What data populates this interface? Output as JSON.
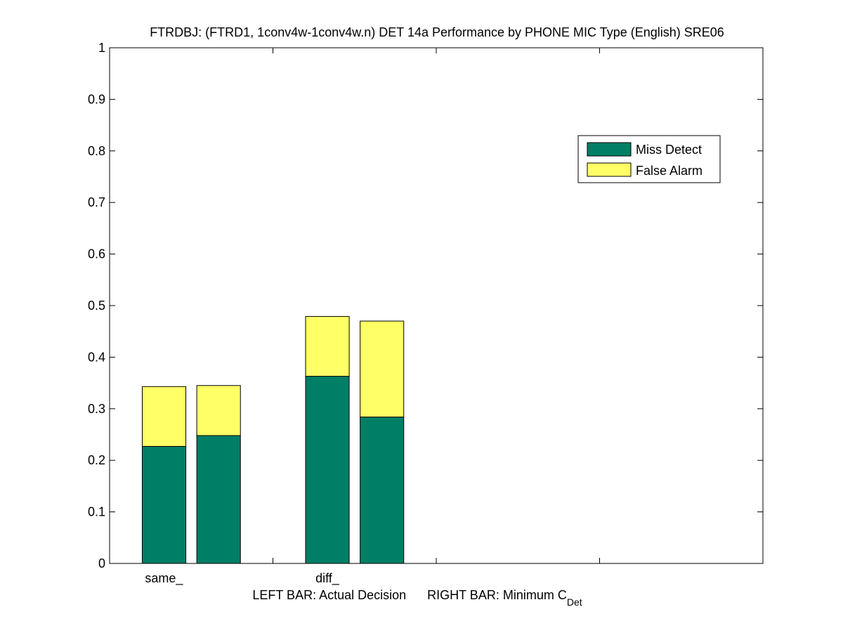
{
  "chart_data": {
    "type": "bar",
    "stacked": true,
    "title": "FTRDBJ: (FTRD1, 1conv4w-1conv4w.n) DET 14a Performance by PHONE MIC Type (English) SRE06",
    "xlabel": {
      "left": "LEFT BAR: Actual Decision",
      "right_prefix": "RIGHT BAR: Minimum C",
      "right_sub": "Det"
    },
    "categories": [
      "same_",
      "diff_"
    ],
    "bar_groups": [
      {
        "category": "same_",
        "bars": [
          {
            "role": "Actual Decision",
            "miss": 0.227,
            "fa": 0.116
          },
          {
            "role": "Minimum CDet",
            "miss": 0.248,
            "fa": 0.097
          }
        ]
      },
      {
        "category": "diff_",
        "bars": [
          {
            "role": "Actual Decision",
            "miss": 0.363,
            "fa": 0.116
          },
          {
            "role": "Minimum CDet",
            "miss": 0.284,
            "fa": 0.186
          }
        ]
      }
    ],
    "series": [
      {
        "name": "Miss Detect",
        "color": "#007f66"
      },
      {
        "name": "False Alarm",
        "color": "#ffff66"
      }
    ],
    "ylim": [
      0,
      1
    ],
    "yticks": [
      "0",
      "0.1",
      "0.2",
      "0.3",
      "0.4",
      "0.5",
      "0.6",
      "0.7",
      "0.8",
      "0.9",
      "1"
    ],
    "grid": false,
    "legend_position": "upper-right"
  }
}
